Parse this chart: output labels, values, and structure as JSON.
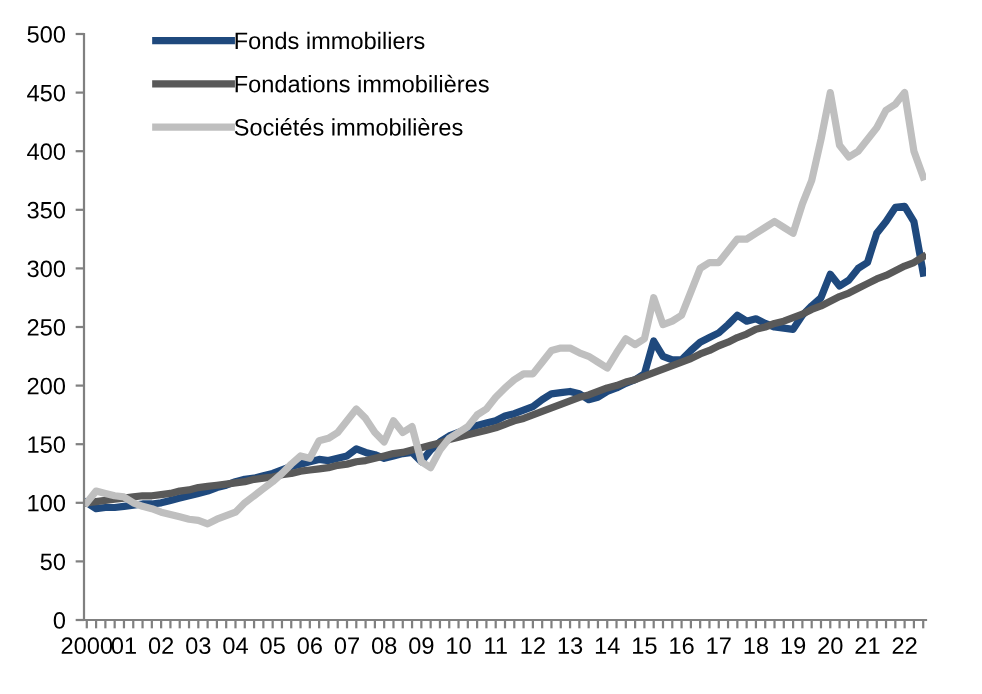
{
  "chart_data": {
    "type": "line",
    "categories": [
      "2000",
      null,
      null,
      null,
      "01",
      null,
      null,
      null,
      "02",
      null,
      null,
      null,
      "03",
      null,
      null,
      null,
      "04",
      null,
      null,
      null,
      "05",
      null,
      null,
      null,
      "06",
      null,
      null,
      null,
      "07",
      null,
      null,
      null,
      "08",
      null,
      null,
      null,
      "09",
      null,
      null,
      null,
      "10",
      null,
      null,
      null,
      "11",
      null,
      null,
      null,
      "12",
      null,
      null,
      null,
      "13",
      null,
      null,
      null,
      "14",
      null,
      null,
      null,
      "15",
      null,
      null,
      null,
      "16",
      null,
      null,
      null,
      "17",
      null,
      null,
      null,
      "18",
      null,
      null,
      null,
      "19",
      null,
      null,
      null,
      "20",
      null,
      null,
      null,
      "21",
      null,
      null,
      null,
      "22",
      null,
      null
    ],
    "series": [
      {
        "name": "Fonds immobiliers",
        "color": "#1f497d",
        "values": [
          100,
          95,
          96,
          96,
          97,
          98,
          99,
          99,
          100,
          102,
          104,
          106,
          108,
          110,
          113,
          115,
          118,
          120,
          121,
          123,
          125,
          128,
          131,
          133,
          135,
          137,
          136,
          138,
          140,
          146,
          143,
          141,
          138,
          140,
          142,
          143,
          135,
          145,
          152,
          157,
          160,
          163,
          166,
          168,
          170,
          174,
          176,
          179,
          182,
          188,
          193,
          194,
          195,
          193,
          188,
          190,
          195,
          198,
          202,
          205,
          210,
          238,
          225,
          222,
          222,
          230,
          237,
          241,
          245,
          252,
          260,
          255,
          257,
          253,
          250,
          249,
          248,
          260,
          268,
          275,
          295,
          285,
          290,
          300,
          305,
          330,
          340,
          352,
          353,
          340,
          296
        ]
      },
      {
        "name": "Fondations immobilières",
        "color": "#595959",
        "values": [
          100,
          101,
          102,
          103,
          104,
          105,
          106,
          106,
          107,
          108,
          110,
          111,
          113,
          114,
          115,
          116,
          117,
          118,
          120,
          121,
          122,
          124,
          125,
          127,
          128,
          129,
          130,
          132,
          133,
          135,
          136,
          138,
          140,
          142,
          143,
          145,
          147,
          149,
          151,
          154,
          156,
          158,
          160,
          162,
          164,
          167,
          170,
          172,
          175,
          178,
          181,
          184,
          187,
          190,
          192,
          195,
          198,
          200,
          203,
          205,
          208,
          211,
          214,
          217,
          220,
          223,
          227,
          230,
          234,
          237,
          241,
          244,
          248,
          250,
          253,
          255,
          258,
          261,
          265,
          268,
          272,
          276,
          279,
          283,
          287,
          291,
          294,
          298,
          302,
          305,
          310
        ]
      },
      {
        "name": "Sociétés immobilières",
        "color": "#bfbfbf",
        "values": [
          100,
          110,
          108,
          106,
          105,
          100,
          97,
          95,
          92,
          90,
          88,
          86,
          85,
          82,
          86,
          89,
          92,
          100,
          106,
          112,
          118,
          125,
          133,
          140,
          138,
          153,
          155,
          160,
          170,
          180,
          172,
          160,
          152,
          170,
          160,
          165,
          135,
          130,
          145,
          155,
          160,
          165,
          175,
          180,
          190,
          198,
          205,
          210,
          210,
          220,
          230,
          232,
          232,
          228,
          225,
          220,
          215,
          228,
          240,
          235,
          240,
          275,
          252,
          255,
          260,
          280,
          300,
          305,
          305,
          315,
          325,
          325,
          330,
          335,
          340,
          335,
          330,
          355,
          375,
          410,
          450,
          405,
          395,
          400,
          410,
          420,
          435,
          440,
          450,
          400,
          378
        ]
      }
    ],
    "ylim": [
      0,
      500
    ],
    "yticks": [
      0,
      50,
      100,
      150,
      200,
      250,
      300,
      350,
      400,
      450,
      500
    ],
    "grid": false,
    "legend": "top left",
    "marker": "none",
    "line_style": "solid"
  }
}
